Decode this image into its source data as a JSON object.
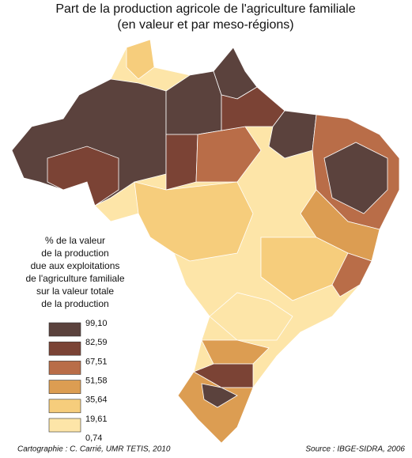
{
  "title": [
    "Part de la production agricole de l'agriculture familiale",
    "(en valeur et par meso-régions)"
  ],
  "legend": {
    "title": [
      "% de la valeur",
      "de la production",
      "due aux exploitations",
      "de l'agriculture familiale",
      "sur la valeur totale",
      "de la production"
    ],
    "breaks": [
      "99,10",
      "82,59",
      "67,51",
      "51,58",
      "35,64",
      "19,61",
      "0,74"
    ],
    "colors": [
      "#5b423d",
      "#7b4335",
      "#b96d48",
      "#dc9d52",
      "#f6cd7c",
      "#fde5a8"
    ]
  },
  "credits": {
    "author": "Cartographie : C. Carrié, UMR TETIS, 2010",
    "source": "Source : IBGE-SIDRA, 2006"
  }
}
